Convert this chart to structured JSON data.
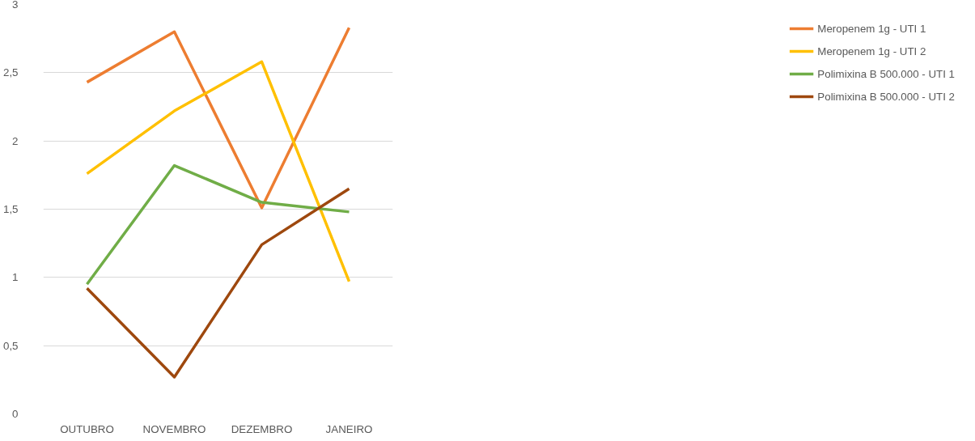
{
  "chart_data": {
    "type": "line",
    "categories": [
      "OUTUBRO",
      "NOVEMBRO",
      "DEZEMBRO",
      "JANEIRO"
    ],
    "series": [
      {
        "name": "Meropenem 1g - UTI 1",
        "color": "#ed7d31",
        "values": [
          2.43,
          2.8,
          1.51,
          2.83
        ]
      },
      {
        "name": "Meropenem 1g - UTI 2",
        "color": "#ffc000",
        "values": [
          1.76,
          2.22,
          2.58,
          0.97
        ]
      },
      {
        "name": "Polimixina B 500.000 - UTI 1",
        "color": "#70ad47",
        "values": [
          0.95,
          1.82,
          1.55,
          1.48
        ]
      },
      {
        "name": "Polimixina B 500.000 - UTI 2",
        "color": "#9e480e",
        "values": [
          0.92,
          0.27,
          1.24,
          1.65
        ]
      }
    ],
    "ylim": [
      0,
      3
    ],
    "yticks": [
      0,
      {
        "value": 0.5,
        "label": "0,5"
      },
      1,
      {
        "value": 1.5,
        "label": "1,5"
      },
      2,
      {
        "value": 2.5,
        "label": "2,5"
      },
      3
    ],
    "grid": "y",
    "legend": "right",
    "marker": "none",
    "line_style": "solid"
  }
}
